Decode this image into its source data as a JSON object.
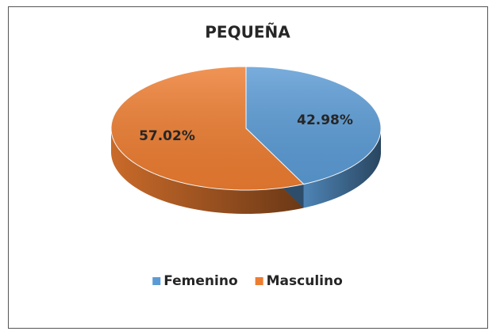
{
  "chart_data": {
    "type": "pie",
    "title": "PEQUEÑA",
    "categories": [
      "Femenino",
      "Masculino"
    ],
    "values": [
      42.98,
      57.02
    ],
    "value_labels": [
      "42.98%",
      "57.02%"
    ],
    "colors": [
      "#5b9bd5",
      "#ed7d31"
    ],
    "legend": "bottom"
  }
}
